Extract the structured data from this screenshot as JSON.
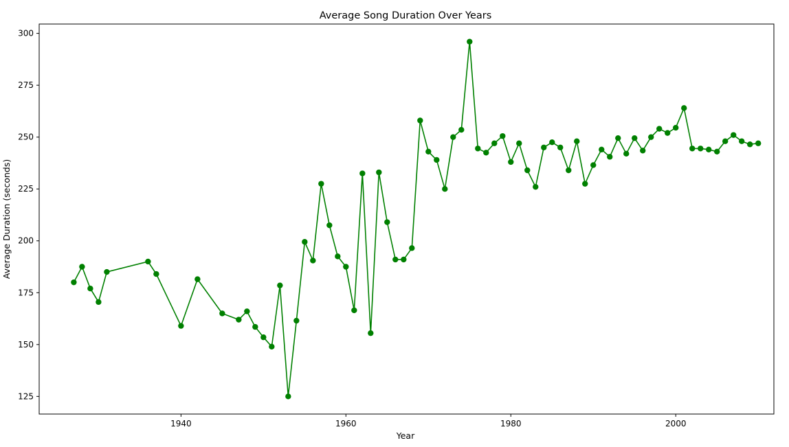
{
  "chart_data": {
    "type": "line",
    "title": "Average Song Duration Over Years",
    "xlabel": "Year",
    "ylabel": "Average Duration (seconds)",
    "xlim": [
      1922.8,
      2011.9
    ],
    "ylim": [
      116.5,
      304.5
    ],
    "xticks": [
      1940,
      1960,
      1980,
      2000
    ],
    "yticks": [
      125,
      150,
      175,
      200,
      225,
      250,
      275,
      300
    ],
    "grid": false,
    "legend": "none",
    "color": "#008000",
    "marker": "circle",
    "x": [
      1927,
      1928,
      1929,
      1930,
      1931,
      1936,
      1937,
      1940,
      1942,
      1945,
      1947,
      1948,
      1949,
      1950,
      1951,
      1952,
      1953,
      1954,
      1955,
      1956,
      1957,
      1958,
      1959,
      1960,
      1961,
      1962,
      1963,
      1964,
      1965,
      1966,
      1967,
      1968,
      1969,
      1970,
      1971,
      1972,
      1973,
      1974,
      1975,
      1976,
      1977,
      1978,
      1979,
      1980,
      1981,
      1982,
      1983,
      1984,
      1985,
      1986,
      1987,
      1988,
      1989,
      1990,
      1991,
      1992,
      1993,
      1994,
      1995,
      1996,
      1997,
      1998,
      1999,
      2000,
      2001,
      2002,
      2003,
      2004,
      2005,
      2006,
      2007,
      2008,
      2009,
      2010
    ],
    "y": [
      180,
      187.5,
      177,
      170.5,
      185,
      190,
      184,
      159,
      181.5,
      165,
      162,
      166,
      158.5,
      153.5,
      149,
      178.5,
      125,
      161.5,
      199.5,
      190.5,
      227.5,
      207.5,
      192.5,
      187.5,
      166.5,
      232.5,
      155.5,
      233,
      209,
      191,
      191,
      196.5,
      258,
      243,
      239,
      225,
      250,
      253.5,
      296,
      244.5,
      242.5,
      247,
      250.5,
      238,
      247,
      234,
      226,
      245,
      247.5,
      245,
      234,
      248,
      227.5,
      236.5,
      244,
      240.5,
      249.5,
      242,
      249.5,
      243.5,
      250,
      254,
      252,
      254.5,
      264,
      244.5,
      244.5,
      244,
      243,
      248,
      251,
      248,
      246.5,
      247
    ]
  }
}
